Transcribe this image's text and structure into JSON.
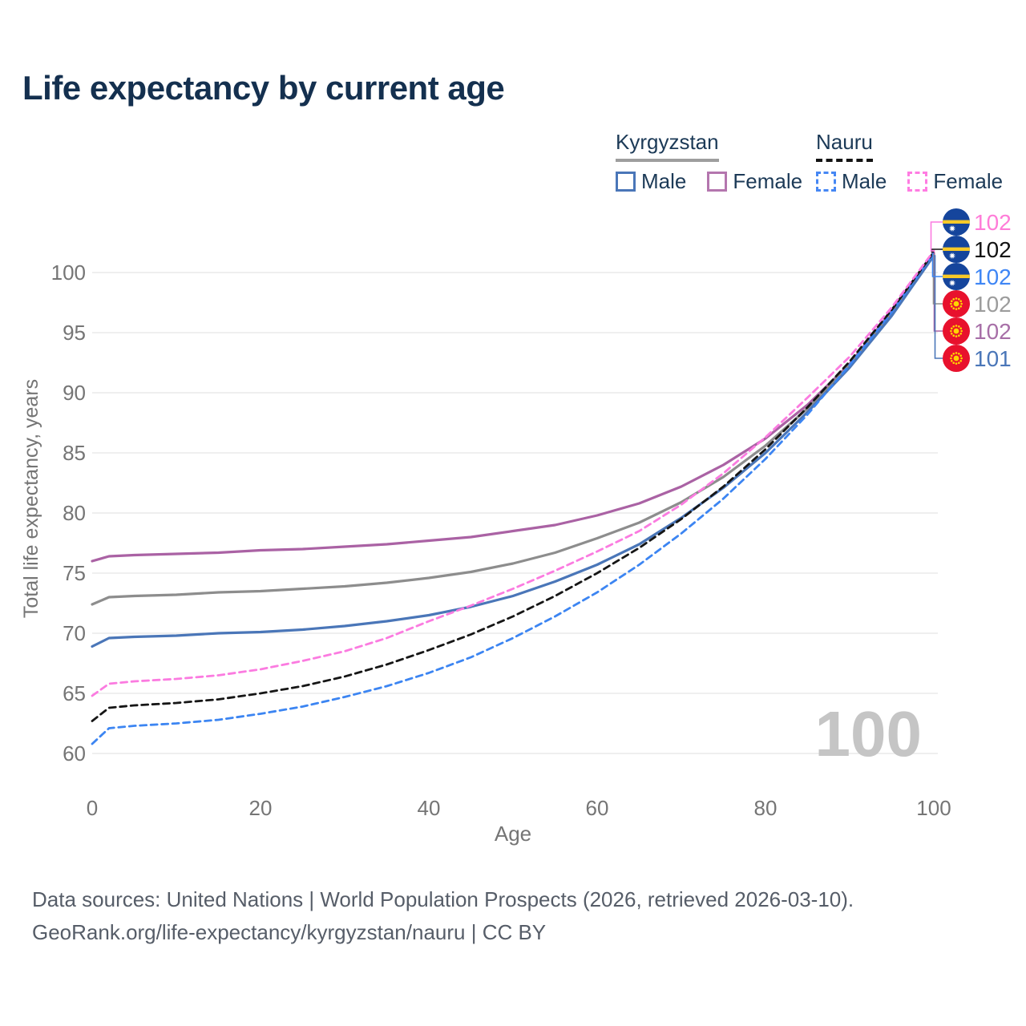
{
  "title": "Life expectancy by current age",
  "legend": {
    "groups": [
      {
        "country": "Kyrgyzstan",
        "underline_color": "#9e9e9e",
        "underline_style": "solid",
        "items": [
          {
            "label": "Male",
            "color": "#4a76b8",
            "dashed": false
          },
          {
            "label": "Female",
            "color": "#b476ae",
            "dashed": false
          }
        ]
      },
      {
        "country": "Nauru",
        "underline_color": "#141414",
        "underline_style": "dashed",
        "items": [
          {
            "label": "Male",
            "color": "#4587f4",
            "dashed": true
          },
          {
            "label": "Female",
            "color": "#ff7ce2",
            "dashed": true
          }
        ]
      }
    ]
  },
  "chart_data": {
    "type": "line",
    "title": "Life expectancy by current age",
    "xlabel": "Age",
    "ylabel": "Total life expectancy, years",
    "xlim": [
      0,
      100
    ],
    "ylim": [
      60,
      102.5
    ],
    "x_ticks": [
      0,
      20,
      40,
      60,
      80,
      100
    ],
    "y_ticks": [
      60,
      65,
      70,
      75,
      80,
      85,
      90,
      95,
      100
    ],
    "grid": true,
    "legend_position": "top-right",
    "x": [
      0,
      2,
      5,
      10,
      15,
      20,
      25,
      30,
      35,
      40,
      45,
      50,
      55,
      60,
      65,
      70,
      75,
      80,
      85,
      90,
      95,
      100
    ],
    "series": [
      {
        "name": "Kyrgyzstan Female",
        "country": "Kyrgyzstan",
        "sex": "female",
        "color": "#aa62a4",
        "dashed": false,
        "label_index": 4,
        "values": [
          76.0,
          76.4,
          76.5,
          76.6,
          76.7,
          76.9,
          77.0,
          77.2,
          77.4,
          77.7,
          78.0,
          78.5,
          79.0,
          79.8,
          80.8,
          82.2,
          84.0,
          86.2,
          89.0,
          92.4,
          96.8,
          101.6
        ]
      },
      {
        "name": "Kyrgyzstan",
        "country": "Kyrgyzstan",
        "sex": "both",
        "color": "#8d8d8d",
        "dashed": false,
        "label_index": 3,
        "values": [
          72.4,
          73.0,
          73.1,
          73.2,
          73.4,
          73.5,
          73.7,
          73.9,
          74.2,
          74.6,
          75.1,
          75.8,
          76.7,
          77.9,
          79.2,
          80.9,
          83.0,
          85.6,
          88.7,
          92.3,
          96.6,
          101.5
        ]
      },
      {
        "name": "Kyrgyzstan Male",
        "country": "Kyrgyzstan",
        "sex": "male",
        "color": "#4a76b8",
        "dashed": false,
        "label_index": 5,
        "values": [
          68.9,
          69.6,
          69.7,
          69.8,
          70.0,
          70.1,
          70.3,
          70.6,
          71.0,
          71.5,
          72.2,
          73.1,
          74.3,
          75.7,
          77.4,
          79.6,
          82.1,
          85.0,
          88.4,
          92.1,
          96.4,
          101.4
        ]
      },
      {
        "name": "Nauru Male",
        "country": "Nauru",
        "sex": "male",
        "color": "#3c85f2",
        "dashed": true,
        "label_index": 2,
        "values": [
          60.8,
          62.1,
          62.3,
          62.5,
          62.8,
          63.3,
          63.9,
          64.7,
          65.6,
          66.7,
          68.0,
          69.6,
          71.4,
          73.4,
          75.7,
          78.3,
          81.2,
          84.5,
          88.2,
          92.3,
          96.7,
          101.6
        ]
      },
      {
        "name": "Nauru",
        "country": "Nauru",
        "sex": "both",
        "color": "#161616",
        "dashed": true,
        "label_index": 1,
        "values": [
          62.7,
          63.8,
          64.0,
          64.2,
          64.5,
          65.0,
          65.6,
          66.4,
          67.4,
          68.6,
          69.9,
          71.4,
          73.1,
          75.0,
          77.1,
          79.5,
          82.2,
          85.3,
          88.8,
          92.6,
          96.9,
          101.7
        ]
      },
      {
        "name": "Nauru Female",
        "country": "Nauru",
        "sex": "female",
        "color": "#fb7be0",
        "dashed": true,
        "label_index": 0,
        "values": [
          64.8,
          65.8,
          66.0,
          66.2,
          66.5,
          67.0,
          67.7,
          68.5,
          69.6,
          71.0,
          72.3,
          73.7,
          75.2,
          76.8,
          78.5,
          80.7,
          83.3,
          86.3,
          89.6,
          93.0,
          97.1,
          101.8
        ]
      }
    ],
    "end_labels": [
      {
        "flag": "nauru",
        "value": "102",
        "color": "#ff7cd8"
      },
      {
        "flag": "nauru",
        "value": "102",
        "color": "#121212"
      },
      {
        "flag": "nauru",
        "value": "102",
        "color": "#3f86f5"
      },
      {
        "flag": "kyrgyzstan",
        "value": "102",
        "color": "#9c9c9c"
      },
      {
        "flag": "kyrgyzstan",
        "value": "102",
        "color": "#a76fa7"
      },
      {
        "flag": "kyrgyzstan",
        "value": "101",
        "color": "#4a76b8"
      }
    ]
  },
  "watermark": "100",
  "footer": {
    "line1": "Data sources: United Nations | World Population Prospects (2026, retrieved 2026-03-10).",
    "line2": "GeoRank.org/life-expectancy/kyrgyzstan/nauru | CC BY"
  }
}
